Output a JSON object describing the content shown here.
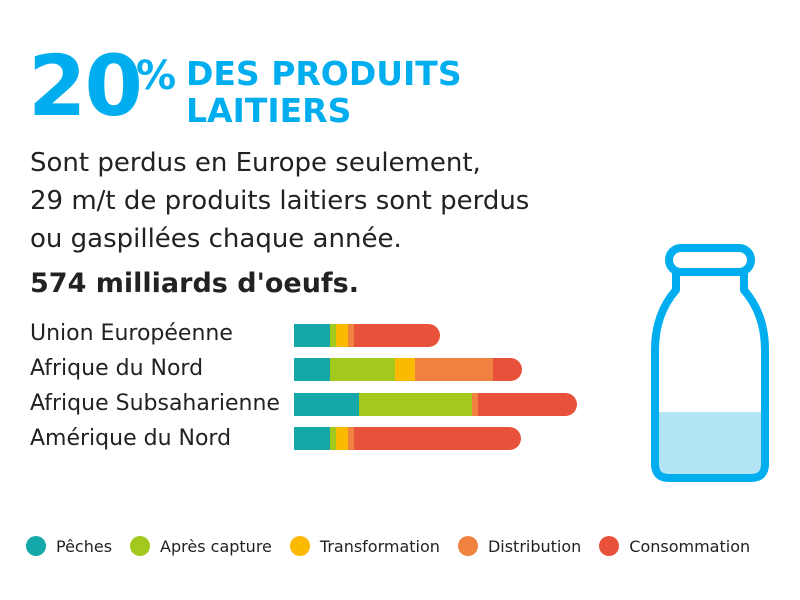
{
  "headline": {
    "number": "20",
    "percent": "%",
    "line1": "DES PRODUITS",
    "line2": "LAITIERS"
  },
  "description": {
    "line1": "Sont perdus en Europe seulement,",
    "line2": "29 m/t de produits laitiers sont perdus",
    "line3": "ou gaspillées chaque année."
  },
  "eggs": "574 milliards d'oeufs.",
  "colors": {
    "accent": "#00aeef",
    "bottle_fill": "#b3e5f5",
    "peches": "#14a8a8",
    "apres_capture": "#a3c81e",
    "transformation": "#fbb900",
    "distribution": "#f08241",
    "consommation": "#e8513a"
  },
  "legend": [
    {
      "label": "Pêches",
      "color": "#14a8a8"
    },
    {
      "label": "Après capture",
      "color": "#a3c81e"
    },
    {
      "label": "Transformation",
      "color": "#fbb900"
    },
    {
      "label": "Distribution",
      "color": "#f08241"
    },
    {
      "label": "Consommation",
      "color": "#e8513a"
    }
  ],
  "chart_data": {
    "type": "bar",
    "orientation": "horizontal",
    "stacked": true,
    "categories": [
      "Union Européenne",
      "Afrique du Nord",
      "Afrique Subsaharienne",
      "Amérique du Nord"
    ],
    "series": [
      {
        "name": "Pêches",
        "color": "#14a8a8",
        "values": [
          36,
          36,
          65,
          36
        ]
      },
      {
        "name": "Après capture",
        "color": "#a3c81e",
        "values": [
          6,
          65,
          113,
          6
        ]
      },
      {
        "name": "Transformation",
        "color": "#fbb900",
        "values": [
          12,
          20,
          0,
          12
        ]
      },
      {
        "name": "Distribution",
        "color": "#f08241",
        "values": [
          6,
          78,
          6,
          6
        ]
      },
      {
        "name": "Consommation",
        "color": "#e8513a",
        "values": [
          86,
          29,
          99,
          167
        ]
      }
    ],
    "xlim": [
      0,
      285
    ],
    "grid": false,
    "legend_position": "bottom"
  }
}
